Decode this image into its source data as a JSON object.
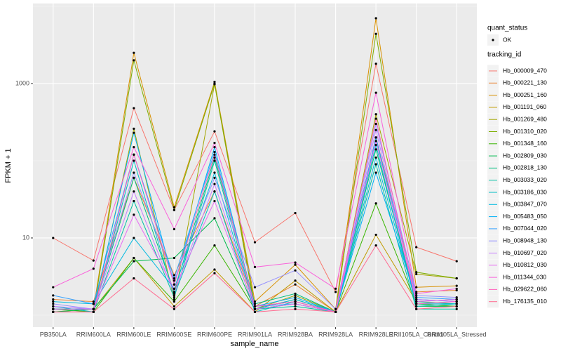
{
  "chart_data": {
    "type": "line",
    "x_label": "sample_name",
    "y_label": "FPKM + 1",
    "categories": [
      "PB350LA",
      "RRIM600LA",
      "RRIM600LE",
      "RRIM600SE",
      "RRIM600PE",
      "RRIM901LA",
      "RRIM928BA",
      "RRIM928LA",
      "RRIM928LE",
      "RRII105LA_Control",
      "RRII105LA_Stressed"
    ],
    "ylim": [
      0.7,
      10870
    ],
    "yticks": [
      10,
      1000
    ],
    "log_y": true,
    "grid": true,
    "background": "#ebebeb",
    "point_color": "#000000",
    "shape_legend": {
      "title": "quant_status",
      "labels": [
        "OK"
      ]
    },
    "legend_title": "tracking_id",
    "legend_position": "right",
    "series": [
      {
        "name": "Hb_000009_470",
        "color": "#F8766D",
        "values": [
          10,
          5.1,
          480,
          23,
          240,
          8.8,
          21,
          2,
          1800,
          7.6,
          5
        ]
      },
      {
        "name": "Hb_000221_130",
        "color": "#EA8331",
        "values": [
          1.6,
          1.5,
          60,
          3.3,
          40,
          1.3,
          2.5,
          1.1,
          200,
          2,
          2.1
        ]
      },
      {
        "name": "Hb_000251_160",
        "color": "#D89000",
        "values": [
          1.1,
          1.2,
          2500,
          25,
          1050,
          1.5,
          4.5,
          1.2,
          7000,
          2.3,
          2.4
        ]
      },
      {
        "name": "Hb_001191_060",
        "color": "#C09B00",
        "values": [
          1.2,
          1.2,
          5.5,
          1.3,
          3.9,
          1.1,
          2.8,
          1.1,
          11,
          1.5,
          1.6
        ]
      },
      {
        "name": "Hb_001269_480",
        "color": "#A3A500",
        "values": [
          1.1,
          1.1,
          260,
          1.6,
          980,
          1.2,
          1.8,
          1.1,
          400,
          3.4,
          3
        ]
      },
      {
        "name": "Hb_001310_020",
        "color": "#7CAE00",
        "values": [
          1.1,
          1.1,
          2000,
          23,
          1000,
          1.3,
          1.5,
          1.1,
          4400,
          3.6,
          3
        ]
      },
      {
        "name": "Hb_001348_160",
        "color": "#39B600",
        "values": [
          1.2,
          1.1,
          5.5,
          1.5,
          8,
          1.2,
          1.6,
          1.1,
          28,
          1.4,
          1.3
        ]
      },
      {
        "name": "Hb_002809_030",
        "color": "#00BB4E",
        "values": [
          1.1,
          1.2,
          5,
          5.5,
          18,
          1.2,
          1.4,
          1.1,
          200,
          1.3,
          1.3
        ]
      },
      {
        "name": "Hb_002818_130",
        "color": "#00BF7D",
        "values": [
          1.2,
          1.2,
          60,
          2,
          110,
          1.4,
          1.9,
          1.1,
          140,
          1.5,
          1.4
        ]
      },
      {
        "name": "Hb_003033_020",
        "color": "#00C1A3",
        "values": [
          1.1,
          1.1,
          30,
          1.7,
          100,
          1.2,
          1.3,
          1.1,
          90,
          1.2,
          1.2
        ]
      },
      {
        "name": "Hb_003186_030",
        "color": "#00BFC4",
        "values": [
          1.3,
          1.1,
          100,
          1.8,
          40,
          1.1,
          1.5,
          1.1,
          160,
          1.3,
          1.4
        ]
      },
      {
        "name": "Hb_003847_070",
        "color": "#00BAE0",
        "values": [
          1.5,
          1.4,
          10,
          2.2,
          70,
          1.2,
          1.6,
          1.1,
          110,
          1.4,
          1.4
        ]
      },
      {
        "name": "Hb_005483_050",
        "color": "#00B0F6",
        "values": [
          1.2,
          1.2,
          230,
          2.5,
          150,
          1.3,
          1.7,
          1.1,
          70,
          1.6,
          1.5
        ]
      },
      {
        "name": "Hb_007044_020",
        "color": "#35A2FF",
        "values": [
          1.8,
          1.4,
          120,
          3,
          130,
          1.3,
          1.4,
          1.1,
          200,
          1.7,
          1.6
        ]
      },
      {
        "name": "Hb_008948_130",
        "color": "#9590FF",
        "values": [
          1.4,
          1.2,
          70,
          2.8,
          60,
          2.3,
          3.8,
          1.2,
          300,
          1.8,
          1.7
        ]
      },
      {
        "name": "Hb_010697_020",
        "color": "#C77CFF",
        "values": [
          1.3,
          1.2,
          40,
          1.9,
          50,
          1.3,
          1.5,
          1.1,
          250,
          1.6,
          1.5
        ]
      },
      {
        "name": "Hb_010812_030",
        "color": "#E76BF3",
        "values": [
          1.2,
          1.2,
          20,
          2.2,
          30,
          1.2,
          1.4,
          1.1,
          180,
          1.5,
          1.6
        ]
      },
      {
        "name": "Hb_011344_030",
        "color": "#FA62DB",
        "values": [
          2.3,
          4,
          150,
          13,
          170,
          4.2,
          4.8,
          2.2,
          760,
          1.9,
          2.2
        ]
      },
      {
        "name": "Hb_029622_060",
        "color": "#FF62BC",
        "values": [
          1.1,
          1.1,
          120,
          2.5,
          120,
          1.3,
          1.5,
          1.1,
          350,
          1.4,
          1.5
        ]
      },
      {
        "name": "Hb_176135_010",
        "color": "#FF6C91",
        "values": [
          1.1,
          1.1,
          3,
          1.2,
          3.5,
          1.1,
          1.2,
          1.1,
          8,
          1.2,
          1.3
        ]
      }
    ]
  }
}
